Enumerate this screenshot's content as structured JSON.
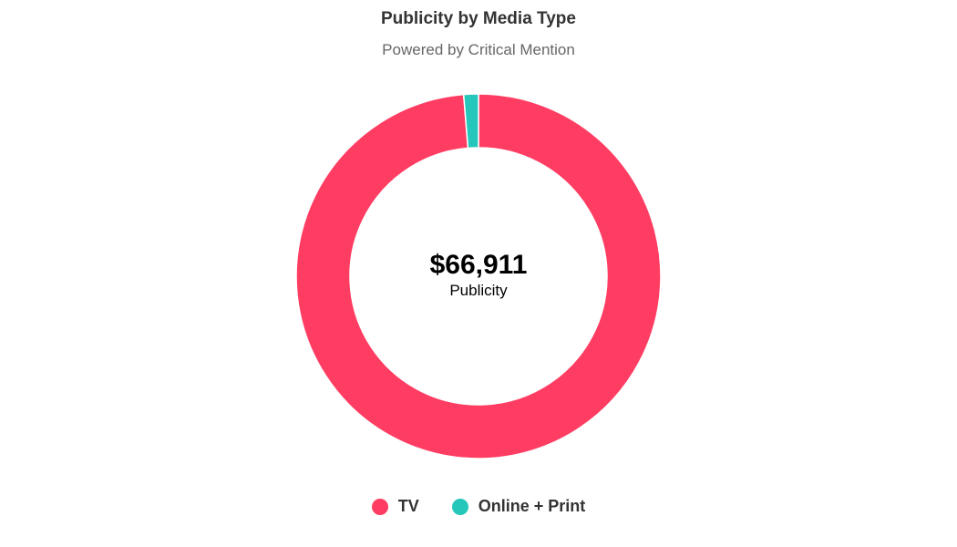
{
  "chart_data": {
    "type": "pie",
    "title": "Publicity by Media Type",
    "subtitle": "Powered by Critical Mention",
    "center_value": "$66,911",
    "center_label": "Publicity",
    "legend_position": "bottom-center",
    "categories": [
      "TV",
      "Online + Print"
    ],
    "values": [
      98.7,
      1.3
    ],
    "colors": [
      "#FF3D63",
      "#24C7BA"
    ]
  }
}
